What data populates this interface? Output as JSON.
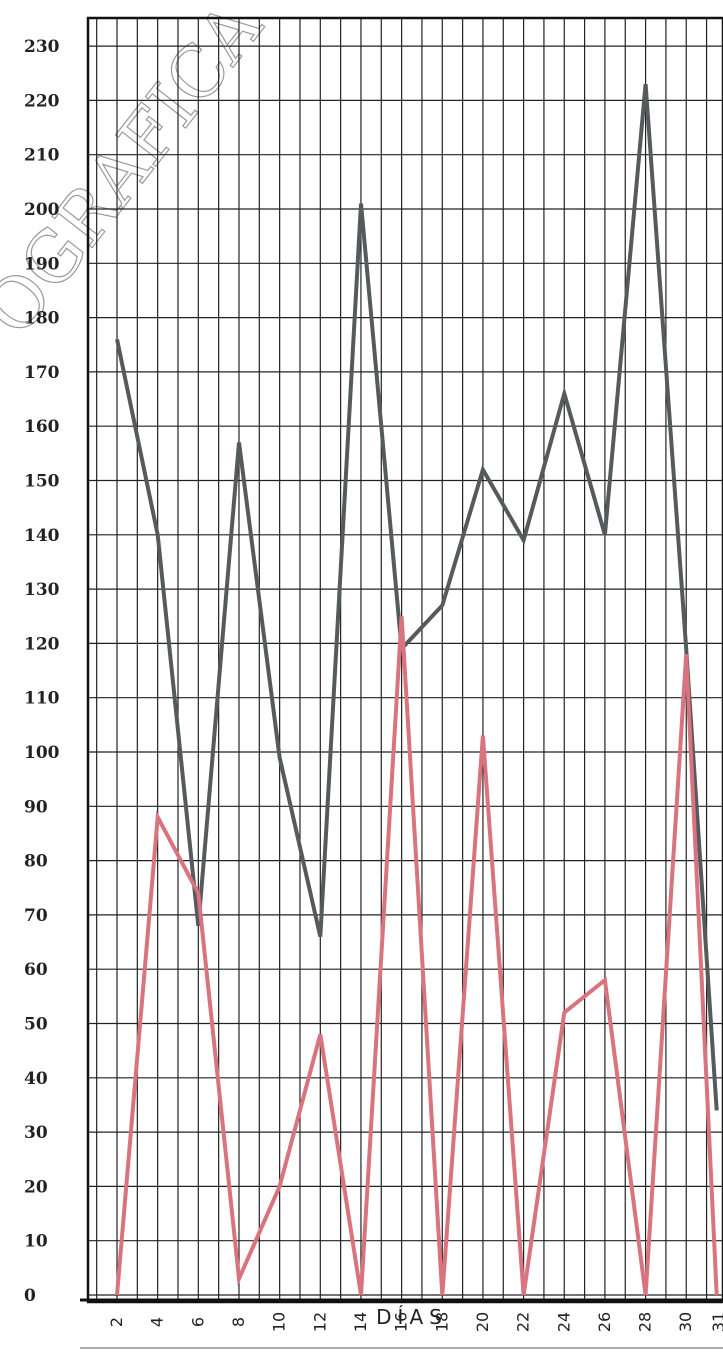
{
  "chart_data": {
    "type": "line",
    "title": "",
    "xlabel": "DÍAS",
    "ylabel": "",
    "grid": true,
    "x_tick_labels": [
      "2",
      "4",
      "6",
      "8",
      "10",
      "12",
      "14",
      "16",
      "18",
      "20",
      "22",
      "24",
      "26",
      "28",
      "30",
      "31"
    ],
    "y_tick_labels": [
      "0",
      "10",
      "20",
      "30",
      "40",
      "50",
      "60",
      "70",
      "80",
      "90",
      "100",
      "110",
      "120",
      "130",
      "140",
      "150",
      "160",
      "170",
      "180",
      "190",
      "200",
      "210",
      "220",
      "230"
    ],
    "xlim": [
      1,
      31.5
    ],
    "ylim": [
      0,
      236
    ],
    "series": [
      {
        "color": "#555a5c",
        "x": [
          2,
          4,
          6,
          8,
          10,
          12,
          14,
          16,
          18,
          20,
          22,
          24,
          26,
          28,
          30,
          31.5
        ],
        "values": [
          176,
          140,
          68,
          157,
          99,
          66,
          201,
          119,
          127,
          152,
          139,
          166,
          140,
          223,
          119,
          34
        ]
      },
      {
        "color": "#d9737d",
        "x": [
          2,
          4,
          6,
          8,
          10,
          12,
          14,
          16,
          18,
          20,
          22,
          24,
          26,
          28,
          30,
          31.5
        ],
        "values": [
          0,
          88,
          74,
          3,
          20,
          48,
          0,
          125,
          0,
          103,
          0,
          52,
          58,
          0,
          118,
          0
        ]
      }
    ]
  },
  "watermark": "OGRAFICA"
}
